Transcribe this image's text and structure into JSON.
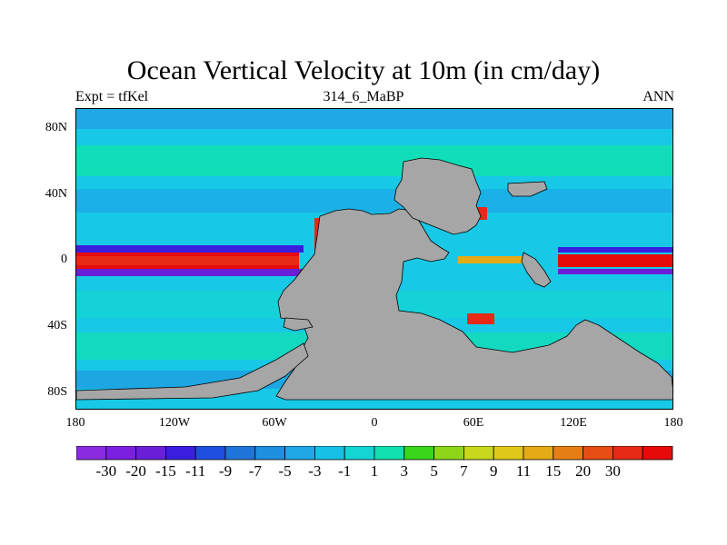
{
  "title": "Ocean Vertical Velocity at 10m (in cm/day)",
  "subtitle_left": "Expt = tfKel",
  "subtitle_center": "314_6_MaBP",
  "subtitle_right": "ANN",
  "lat_ticks": [
    "80N",
    "40N",
    "0",
    "40S",
    "80S"
  ],
  "lon_ticks": [
    "180",
    "120W",
    "60W",
    "0",
    "60E",
    "120E",
    "180"
  ],
  "colorbar": {
    "colors": [
      "#8a2be2",
      "#7b1fe0",
      "#6a1ed8",
      "#3a1ee0",
      "#1f4fe0",
      "#1f74d8",
      "#1f8fe0",
      "#1fa7e6",
      "#17c0e6",
      "#14d4d4",
      "#12e0b0",
      "#3ad61a",
      "#8ed61a",
      "#c8d81a",
      "#e0c81a",
      "#e6aa16",
      "#e67e16",
      "#e64e16",
      "#e62a16",
      "#e60a0a"
    ],
    "labels": [
      "-30",
      "-20",
      "-15",
      "-11",
      "-9",
      "-7",
      "-5",
      "-3",
      "-1",
      "1",
      "3",
      "5",
      "7",
      "9",
      "11",
      "15",
      "20",
      "30"
    ]
  },
  "colors": {
    "land": "#a6a6a6",
    "ocean_background": "#17c9e6",
    "equatorial_upwelling": "#e60a0a",
    "equatorial_downwelling": "#3a1ee0"
  }
}
